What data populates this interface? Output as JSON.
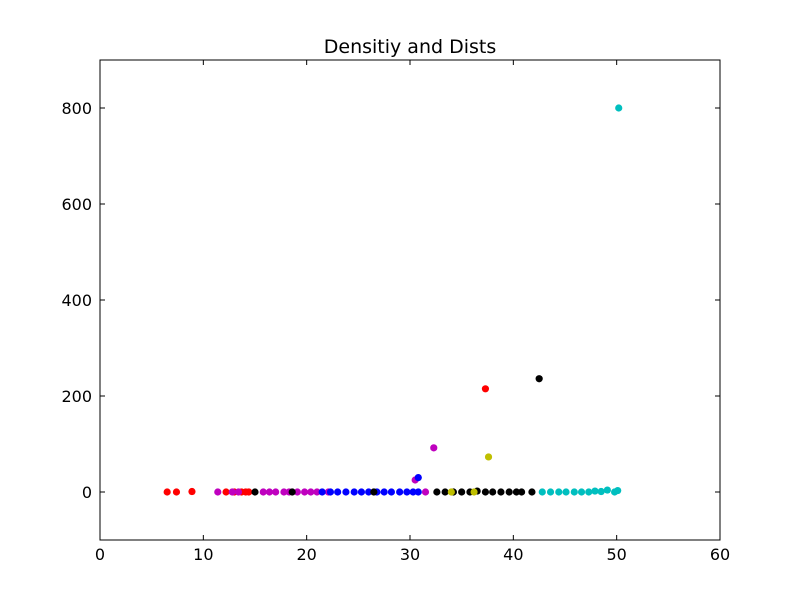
{
  "chart_data": {
    "type": "scatter",
    "title": "Densitiy and Dists",
    "xlabel": "",
    "ylabel": "",
    "xlim": [
      0,
      60
    ],
    "ylim": [
      -100,
      900
    ],
    "xticks": [
      0,
      10,
      20,
      30,
      40,
      50,
      60
    ],
    "yticks": [
      0,
      200,
      400,
      600,
      800
    ],
    "grid": false,
    "series": [
      {
        "color": "#ff0000",
        "points": [
          [
            6.5,
            0
          ],
          [
            7.4,
            0
          ],
          [
            8.9,
            1
          ],
          [
            12.2,
            0
          ],
          [
            13.0,
            0
          ],
          [
            13.7,
            0
          ],
          [
            14.1,
            0
          ],
          [
            14.4,
            0
          ],
          [
            37.3,
            215
          ]
        ]
      },
      {
        "color": "#bf00bf",
        "points": [
          [
            11.4,
            0
          ],
          [
            12.8,
            0
          ],
          [
            13.4,
            0
          ],
          [
            15.8,
            0
          ],
          [
            16.4,
            0
          ],
          [
            17.0,
            0
          ],
          [
            17.8,
            0
          ],
          [
            18.3,
            0
          ],
          [
            19.1,
            0
          ],
          [
            19.8,
            0
          ],
          [
            20.4,
            0
          ],
          [
            21.0,
            0
          ],
          [
            22.1,
            0
          ],
          [
            30.5,
            25
          ],
          [
            31.5,
            0
          ],
          [
            32.3,
            92
          ]
        ]
      },
      {
        "color": "#0000ff",
        "points": [
          [
            21.5,
            0
          ],
          [
            22.3,
            0
          ],
          [
            23.0,
            0
          ],
          [
            23.8,
            0
          ],
          [
            24.6,
            0
          ],
          [
            25.3,
            0
          ],
          [
            26.0,
            0
          ],
          [
            26.8,
            0
          ],
          [
            27.5,
            0
          ],
          [
            28.2,
            0
          ],
          [
            29.0,
            0
          ],
          [
            29.7,
            0
          ],
          [
            30.3,
            0
          ],
          [
            30.8,
            0
          ],
          [
            30.8,
            30
          ]
        ]
      },
      {
        "color": "#000000",
        "points": [
          [
            15.0,
            0
          ],
          [
            18.6,
            0
          ],
          [
            26.5,
            0
          ],
          [
            32.6,
            0
          ],
          [
            33.4,
            0
          ],
          [
            34.2,
            0
          ],
          [
            35.0,
            0
          ],
          [
            35.8,
            0
          ],
          [
            36.5,
            2
          ],
          [
            37.3,
            0
          ],
          [
            38.0,
            0
          ],
          [
            38.8,
            0
          ],
          [
            39.6,
            0
          ],
          [
            40.3,
            0
          ],
          [
            40.8,
            0
          ],
          [
            41.8,
            0
          ],
          [
            42.5,
            236
          ]
        ]
      },
      {
        "color": "#bfbf00",
        "points": [
          [
            34.0,
            0
          ],
          [
            36.2,
            0
          ],
          [
            37.6,
            73
          ]
        ]
      },
      {
        "color": "#00bfbf",
        "points": [
          [
            42.8,
            0
          ],
          [
            43.6,
            0
          ],
          [
            44.4,
            0
          ],
          [
            45.1,
            0
          ],
          [
            45.9,
            0
          ],
          [
            46.6,
            0
          ],
          [
            47.3,
            0
          ],
          [
            47.9,
            2
          ],
          [
            48.5,
            1
          ],
          [
            49.1,
            4
          ],
          [
            49.8,
            0
          ],
          [
            50.1,
            3
          ],
          [
            50.2,
            800
          ]
        ]
      }
    ]
  }
}
